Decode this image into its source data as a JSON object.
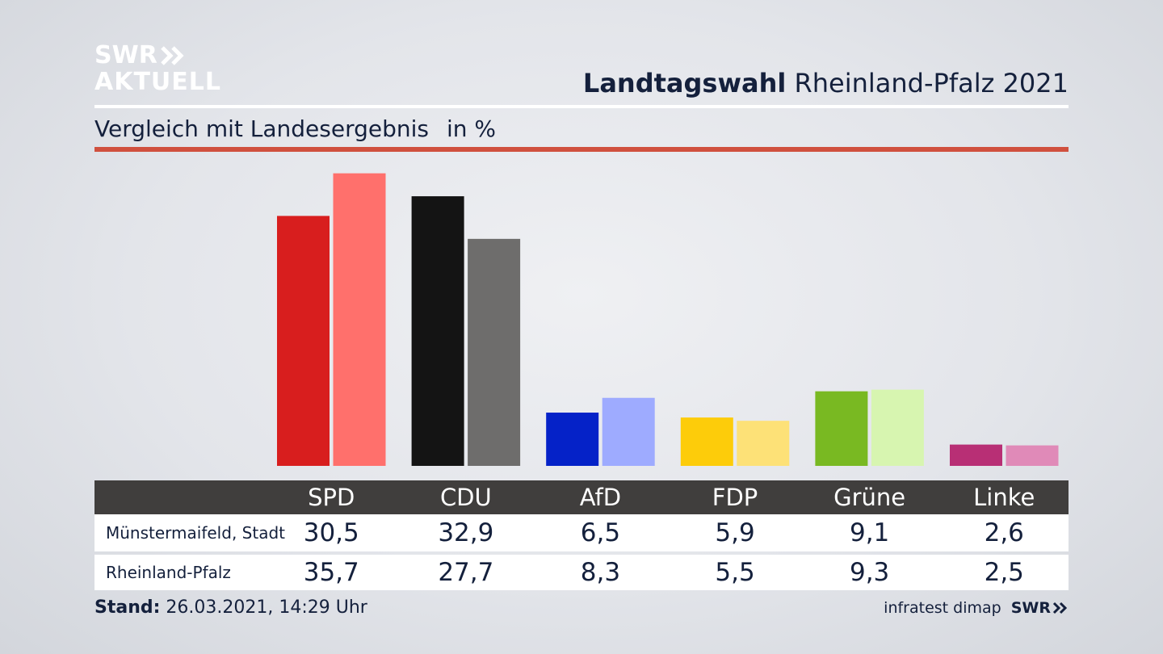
{
  "brand": {
    "logo_line1": "SWR",
    "logo_line2": "AKTUELL"
  },
  "header": {
    "title_bold": "Landtagswahl",
    "title_rest": "Rheinland-Pfalz 2021"
  },
  "subtitle": {
    "text": "Vergleich mit Landesergebnis",
    "unit": "in %"
  },
  "footer": {
    "stand_label": "Stand:",
    "stand_value": "26.03.2021, 14:29 Uhr",
    "source": "infratest dimap",
    "brand": "SWR"
  },
  "chart_data": {
    "type": "bar",
    "categories": [
      "SPD",
      "CDU",
      "AfD",
      "FDP",
      "Grüne",
      "Linke"
    ],
    "series": [
      {
        "name": "Münstermaifeld, Stadt",
        "values": [
          30.5,
          32.9,
          6.5,
          5.9,
          9.1,
          2.6
        ],
        "labels": [
          "30,5",
          "32,9",
          "6,5",
          "5,9",
          "9,1",
          "2,6"
        ],
        "colors": [
          "#d81e1e",
          "#141414",
          "#0522c8",
          "#fdcc0a",
          "#79b922",
          "#b82f75"
        ]
      },
      {
        "name": "Rheinland-Pfalz",
        "values": [
          35.7,
          27.7,
          8.3,
          5.5,
          9.3,
          2.5
        ],
        "labels": [
          "35,7",
          "27,7",
          "8,3",
          "5,5",
          "9,3",
          "2,5"
        ],
        "colors": [
          "#ff706c",
          "#6e6d6c",
          "#9eabff",
          "#fde177",
          "#d7f5b0",
          "#e08ab8"
        ]
      }
    ],
    "ylim": [
      0,
      36
    ],
    "grid": false,
    "legend": "table-below"
  }
}
